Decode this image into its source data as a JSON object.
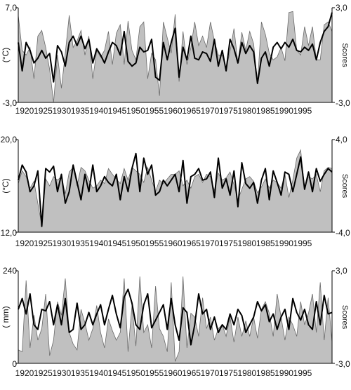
{
  "chart_data": [
    {
      "type": "area",
      "ylabel": "(°C)",
      "ylabel_right": "Scores",
      "ylim": [
        -3.0,
        7.0
      ],
      "ylim_right": [
        -3.0,
        3.0
      ],
      "left_tick_labels": [
        "7,0",
        "-3,0"
      ],
      "right_tick_labels": [
        "3,0",
        "-3,0"
      ],
      "x_tick_labels": [
        "1920",
        "1925",
        "1930",
        "1935",
        "1940",
        "1945",
        "1950",
        "1955",
        "1960",
        "1965",
        "1970",
        "1975",
        "1980",
        "1985",
        "1990",
        "1995"
      ],
      "x": [
        1919,
        1920,
        1921,
        1922,
        1923,
        1924,
        1925,
        1926,
        1927,
        1928,
        1929,
        1930,
        1931,
        1932,
        1933,
        1934,
        1935,
        1936,
        1937,
        1938,
        1939,
        1940,
        1941,
        1942,
        1943,
        1944,
        1945,
        1946,
        1947,
        1948,
        1949,
        1950,
        1951,
        1952,
        1953,
        1954,
        1955,
        1956,
        1957,
        1958,
        1959,
        1960,
        1961,
        1962,
        1963,
        1964,
        1965,
        1966,
        1967,
        1968,
        1969,
        1970,
        1971,
        1972,
        1973,
        1974,
        1975,
        1976,
        1977,
        1978,
        1979,
        1980,
        1981,
        1982,
        1983,
        1984,
        1985,
        1986,
        1987,
        1988,
        1989,
        1990,
        1991,
        1992,
        1993,
        1994,
        1995,
        1996,
        1997,
        1998,
        1999
      ],
      "series": [
        {
          "style": "area",
          "axis": "left",
          "values": [
            6.2,
            2.5,
            2.0,
            2.8,
            -0.5,
            4.0,
            4.6,
            2.8,
            0.5,
            -3.0,
            2.0,
            -1.5,
            2.2,
            6.2,
            2.8,
            3.5,
            4.6,
            2.0,
            4.0,
            -0.5,
            2.5,
            1.8,
            2.5,
            4.5,
            1.0,
            4.3,
            5.2,
            1.0,
            5.6,
            2.5,
            1.5,
            5.0,
            5.5,
            -0.5,
            2.2,
            1.5,
            -2.3,
            5.5,
            3.8,
            2.2,
            6.3,
            -0.8,
            4.5,
            1.0,
            2.8,
            5.5,
            3.0,
            4.0,
            2.8,
            5.5,
            3.5,
            2.0,
            2.0,
            0.5,
            2.4,
            4.8,
            1.2,
            4.4,
            2.5,
            4.5,
            3.2,
            -1.0,
            5.5,
            4.2,
            2.2,
            1.5,
            1.8,
            2.8,
            1.4,
            6.5,
            6.6,
            2.5,
            2.0,
            5.0,
            3.0,
            5.0,
            1.5,
            1.5,
            5.2,
            5.5,
            4.5
          ]
        },
        {
          "style": "line",
          "axis": "right",
          "values": [
            0.8,
            -1.0,
            0.8,
            0.3,
            -0.5,
            -0.2,
            0.3,
            -0.2,
            0.1,
            -1.7,
            0.6,
            0.2,
            -0.7,
            0.8,
            1.2,
            0.6,
            1.2,
            0.4,
            1.0,
            -0.5,
            0.4,
            0.0,
            -0.5,
            0.2,
            0.8,
            0.6,
            0.0,
            1.5,
            -0.4,
            -0.7,
            -0.5,
            0.5,
            0.2,
            0.3,
            1.0,
            -1.4,
            -1.6,
            0.8,
            -0.3,
            0.8,
            1.7,
            -1.4,
            0.5,
            -0.3,
            1.2,
            -0.2,
            -0.3,
            0.2,
            0.1,
            -0.4,
            1.0,
            -0.7,
            0.3,
            -1.0,
            1.0,
            0.4,
            -0.5,
            0.8,
            0.1,
            0.6,
            0.2,
            -1.8,
            -0.2,
            0.2,
            -0.7,
            0.5,
            0.8,
            0.4,
            0.8,
            0.5,
            1.0,
            0.3,
            0.2,
            0.5,
            0.3,
            0.7,
            -0.3,
            0.8,
            1.5,
            1.8,
            2.7
          ]
        }
      ]
    },
    {
      "type": "area",
      "ylabel": "(°C)",
      "ylabel_right": "Scores",
      "ylim": [
        12.0,
        20.0
      ],
      "ylim_right": [
        -4.0,
        4.0
      ],
      "left_tick_labels": [
        "20,0",
        "12,0"
      ],
      "right_tick_labels": [
        "4,0",
        "-4,0"
      ],
      "x_tick_labels": [
        "1920",
        "1925",
        "1930",
        "1935",
        "1940",
        "1945",
        "1950",
        "1955",
        "1960",
        "1965",
        "1970",
        "1975",
        "1980",
        "1985",
        "1990",
        "1995"
      ],
      "x": [
        1919,
        1920,
        1921,
        1922,
        1923,
        1924,
        1925,
        1926,
        1927,
        1928,
        1929,
        1930,
        1931,
        1932,
        1933,
        1934,
        1935,
        1936,
        1937,
        1938,
        1939,
        1940,
        1941,
        1942,
        1943,
        1944,
        1945,
        1946,
        1947,
        1948,
        1949,
        1950,
        1951,
        1952,
        1953,
        1954,
        1955,
        1956,
        1957,
        1958,
        1959,
        1960,
        1961,
        1962,
        1963,
        1964,
        1965,
        1966,
        1967,
        1968,
        1969,
        1970,
        1971,
        1972,
        1973,
        1974,
        1975,
        1976,
        1977,
        1978,
        1979,
        1980,
        1981,
        1982,
        1983,
        1984,
        1985,
        1986,
        1987,
        1988,
        1989,
        1990,
        1991,
        1992,
        1993,
        1994,
        1995,
        1996,
        1997,
        1998,
        1999
      ],
      "series": [
        {
          "style": "area",
          "axis": "left",
          "values": [
            16.2,
            17.3,
            16.8,
            15.8,
            16.4,
            14.5,
            12.6,
            16.6,
            16.0,
            16.8,
            16.5,
            16.8,
            15.3,
            17.2,
            17.6,
            16.0,
            17.6,
            17.3,
            16.5,
            15.8,
            16.0,
            16.5,
            16.2,
            17.5,
            17.0,
            16.6,
            16.2,
            17.5,
            16.5,
            17.6,
            17.3,
            17.0,
            16.3,
            17.6,
            16.5,
            15.5,
            16.5,
            16.2,
            16.6,
            17.0,
            17.0,
            17.3,
            16.0,
            16.5,
            15.8,
            16.8,
            17.0,
            16.3,
            17.0,
            16.8,
            15.6,
            17.1,
            16.5,
            16.7,
            17.2,
            16.1,
            14.8,
            15.7,
            16.6,
            16.8,
            16.4,
            15.4,
            15.9,
            16.6,
            15.8,
            16.5,
            16.3,
            15.8,
            17.0,
            15.0,
            16.5,
            18.4,
            19.1,
            15.8,
            16.8,
            16.6,
            17.0,
            15.5,
            17.3,
            17.6,
            17.5
          ]
        },
        {
          "style": "line",
          "axis": "right",
          "values": [
            0.5,
            1.8,
            1.2,
            -0.5,
            0.0,
            1.3,
            -3.5,
            1.5,
            1.2,
            1.7,
            -0.5,
            1.0,
            -1.5,
            -0.5,
            1.8,
            0.3,
            -1.2,
            1.0,
            -0.5,
            1.8,
            -0.5,
            0.0,
            0.8,
            0.3,
            0.0,
            1.0,
            -1.2,
            0.8,
            -0.5,
            1.5,
            2.8,
            -0.5,
            2.4,
            1.0,
            1.8,
            -0.8,
            -0.5,
            0.5,
            0.0,
            0.5,
            1.0,
            -0.5,
            2.2,
            -1.5,
            0.8,
            1.0,
            1.5,
            0.5,
            0.6,
            1.2,
            -1.0,
            2.4,
            -0.2,
            0.6,
            -0.8,
            1.3,
            -1.8,
            2.0,
            0.2,
            -0.2,
            0.3,
            -1.5,
            0.5,
            1.5,
            -1.2,
            1.3,
            0.3,
            -0.8,
            1.2,
            1.0,
            -0.5,
            1.0,
            2.5,
            -0.3,
            1.2,
            -0.5,
            1.5,
            0.4,
            1.0,
            1.5,
            1.2
          ]
        }
      ]
    },
    {
      "type": "area",
      "ylabel": "( mm)",
      "ylabel_right": "Scores",
      "ylim": [
        0,
        240
      ],
      "ylim_right": [
        -3.0,
        3.0
      ],
      "left_tick_labels": [
        "240",
        "0"
      ],
      "right_tick_labels": [
        "3,0",
        "-3,0"
      ],
      "x_tick_labels": [
        "1920",
        "1925",
        "1930",
        "1935",
        "1940",
        "1945",
        "1950",
        "1955",
        "1960",
        "1965",
        "1970",
        "1975",
        "1980",
        "1985",
        "1990",
        "1995"
      ],
      "x": [
        1919,
        1920,
        1921,
        1922,
        1923,
        1924,
        1925,
        1926,
        1927,
        1928,
        1929,
        1930,
        1931,
        1932,
        1933,
        1934,
        1935,
        1936,
        1937,
        1938,
        1939,
        1940,
        1941,
        1942,
        1943,
        1944,
        1945,
        1946,
        1947,
        1948,
        1949,
        1950,
        1951,
        1952,
        1953,
        1954,
        1955,
        1956,
        1957,
        1958,
        1959,
        1960,
        1961,
        1962,
        1963,
        1964,
        1965,
        1966,
        1967,
        1968,
        1969,
        1970,
        1971,
        1972,
        1973,
        1974,
        1975,
        1976,
        1977,
        1978,
        1979,
        1980,
        1981,
        1982,
        1983,
        1984,
        1985,
        1986,
        1987,
        1988,
        1989,
        1990,
        1991,
        1992,
        1993,
        1994,
        1995,
        1996,
        1997,
        1998,
        1999
      ],
      "series": [
        {
          "style": "area",
          "axis": "left",
          "values": [
            35,
            30,
            215,
            40,
            125,
            60,
            90,
            180,
            20,
            60,
            160,
            125,
            220,
            80,
            50,
            35,
            140,
            105,
            60,
            90,
            150,
            80,
            40,
            115,
            85,
            60,
            80,
            220,
            30,
            150,
            45,
            225,
            80,
            100,
            40,
            200,
            90,
            70,
            30,
            210,
            5,
            30,
            225,
            40,
            130,
            120,
            70,
            170,
            90,
            120,
            60,
            90,
            100,
            70,
            120,
            55,
            120,
            70,
            110,
            70,
            120,
            65,
            140,
            160,
            130,
            70,
            180,
            120,
            60,
            120,
            100,
            70,
            160,
            100,
            130,
            180,
            80,
            210,
            60,
            170,
            55
          ]
        },
        {
          "style": "line",
          "axis": "right",
          "values": [
            0.5,
            1.2,
            0.2,
            1.5,
            -0.5,
            -0.8,
            0.5,
            0.4,
            1.0,
            -0.5,
            0.8,
            -0.5,
            1.2,
            -1.0,
            -0.8,
            0.9,
            -0.8,
            -0.5,
            0.3,
            -0.5,
            0.2,
            0.8,
            -0.5,
            0.5,
            1.4,
            0.2,
            -0.7,
            1.3,
            1.8,
            0.9,
            -0.5,
            -0.8,
            0.8,
            1.5,
            -0.7,
            -0.2,
            0.3,
            0.8,
            -0.8,
            1.2,
            -0.5,
            -1.5,
            0.6,
            0.3,
            -1.8,
            -0.5,
            1.5,
            0.2,
            0.5,
            -0.8,
            0.0,
            -1.0,
            -0.5,
            -0.8,
            0.2,
            -0.5,
            0.5,
            0.1,
            -1.0,
            -0.5,
            0.0,
            1.0,
            0.4,
            0.8,
            -0.3,
            0.2,
            -0.8,
            0.0,
            0.5,
            -0.8,
            1.2,
            0.3,
            -0.2,
            0.5,
            -0.5,
            -0.8,
            1.0,
            -0.5,
            1.4,
            0.2,
            0.3
          ]
        }
      ]
    }
  ]
}
